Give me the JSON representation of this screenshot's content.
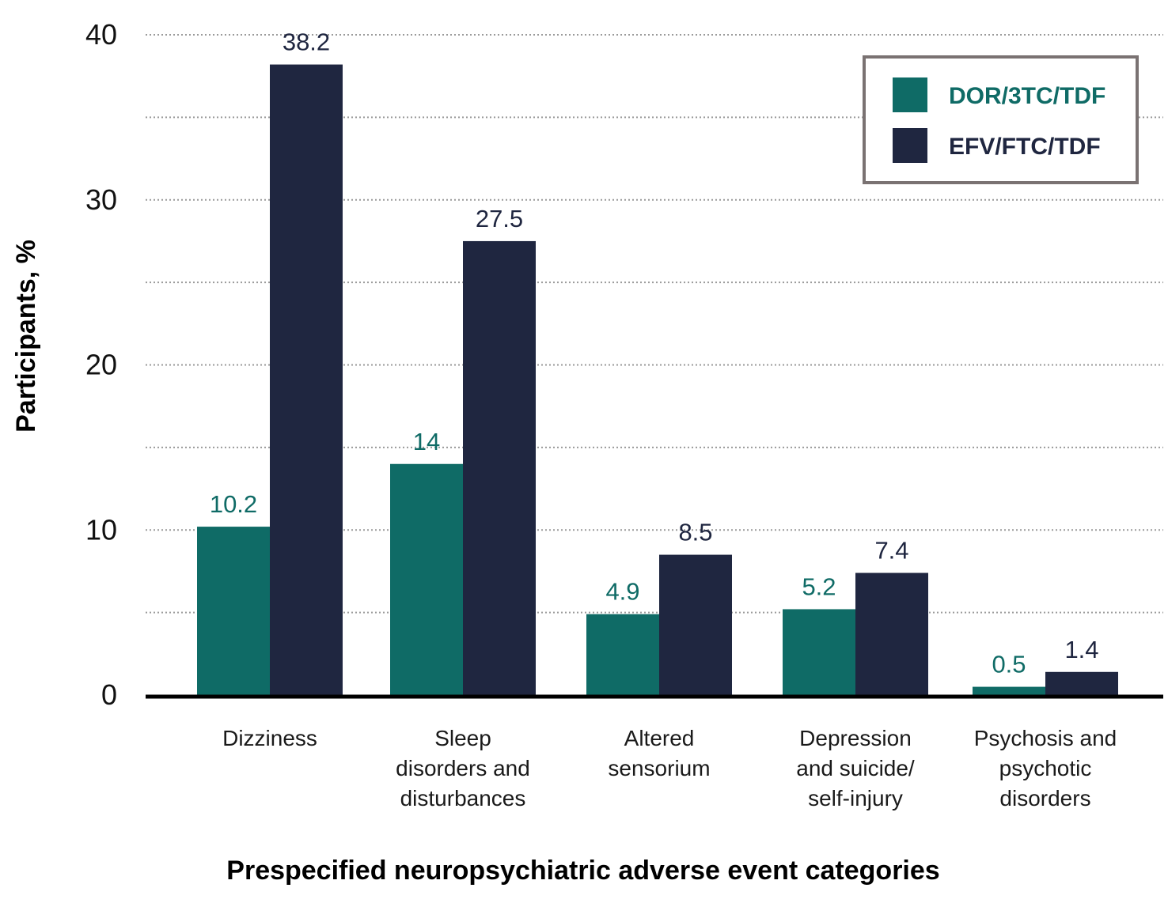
{
  "chart_data": {
    "type": "bar",
    "title": "",
    "xlabel": "Prespecified neuropsychiatric adverse event categories",
    "ylabel": "Participants, %",
    "ylim": [
      0,
      40
    ],
    "yticks": [
      0,
      10,
      20,
      30,
      40
    ],
    "grid": true,
    "legend_position": "top-right",
    "categories": [
      [
        "Dizziness"
      ],
      [
        "Sleep",
        "disorders and",
        "disturbances"
      ],
      [
        "Altered",
        "sensorium"
      ],
      [
        "Depression",
        "and suicide/",
        "self-injury"
      ],
      [
        "Psychosis and",
        "psychotic",
        "disorders"
      ]
    ],
    "series": [
      {
        "name": "DOR/3TC/TDF",
        "color": "#0f6b66",
        "values": [
          10.2,
          14,
          4.9,
          5.2,
          0.5
        ]
      },
      {
        "name": "EFV/FTC/TDF",
        "color": "#1f2640",
        "values": [
          38.2,
          27.5,
          8.5,
          7.4,
          1.4
        ]
      }
    ]
  }
}
